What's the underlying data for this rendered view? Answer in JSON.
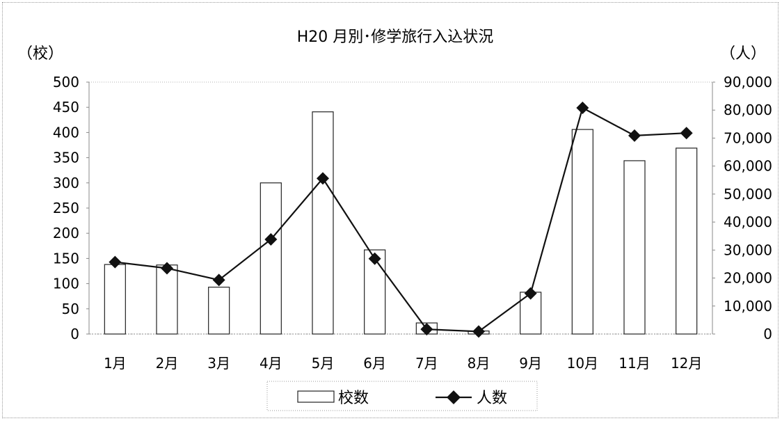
{
  "chart_data": {
    "type": "bar+line",
    "title": "H20 月別･修学旅行入込状況",
    "categories": [
      "1月",
      "2月",
      "3月",
      "4月",
      "5月",
      "6月",
      "7月",
      "8月",
      "9月",
      "10月",
      "11月",
      "12月"
    ],
    "series": [
      {
        "name": "校数",
        "type": "bar",
        "axis": "left",
        "values": [
          138,
          137,
          93,
          300,
          441,
          167,
          22,
          6,
          83,
          406,
          344,
          369
        ]
      },
      {
        "name": "人数",
        "type": "line",
        "axis": "right",
        "values": [
          25700,
          23500,
          19300,
          33800,
          55600,
          26900,
          1700,
          900,
          14500,
          80800,
          70900,
          71800
        ]
      }
    ],
    "y_left": {
      "label": "（校）",
      "min": 0,
      "max": 500,
      "ticks": [
        "0",
        "50",
        "100",
        "150",
        "200",
        "250",
        "300",
        "350",
        "400",
        "450",
        "500"
      ]
    },
    "y_right": {
      "label": "（人）",
      "min": 0,
      "max": 90000,
      "ticks": [
        "0",
        "10,000",
        "20,000",
        "30,000",
        "40,000",
        "50,000",
        "60,000",
        "70,000",
        "80,000",
        "90,000"
      ]
    },
    "grid": false,
    "legend_position": "bottom",
    "colors": {
      "bar_fill": "#ffffff",
      "bar_stroke": "#222222",
      "line": "#111111",
      "marker": "#111111"
    }
  }
}
